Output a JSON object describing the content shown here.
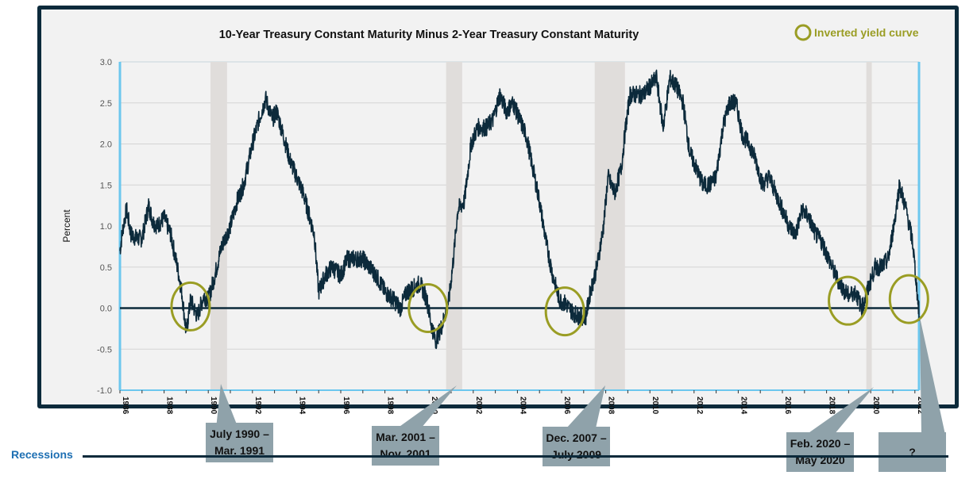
{
  "chart_data": {
    "type": "line",
    "title": "10-Year Treasury Constant Maturity Minus 2-Year Treasury Constant Maturity",
    "xlabel": "",
    "ylabel": "Percent",
    "xlim": [
      1986,
      2022.2
    ],
    "ylim": [
      -1.0,
      3.0
    ],
    "yticks": [
      "3.0",
      "2.5",
      "2.0",
      "1.5",
      "1.0",
      "0.5",
      "0.0",
      "-0.5",
      "-1.0"
    ],
    "ytick_values": [
      3.0,
      2.5,
      2.0,
      1.5,
      1.0,
      0.5,
      0.0,
      -0.5,
      -1.0
    ],
    "xticks": [
      "1986",
      "1988",
      "1990",
      "1992",
      "1994",
      "1996",
      "1998",
      "2000",
      "2002",
      "2004",
      "2006",
      "2008",
      "2010",
      "2012",
      "2014",
      "2016",
      "2018",
      "2020",
      "2022"
    ],
    "grid": true,
    "series": [
      {
        "name": "10Y-2Y spread",
        "color": "#0c2a3b",
        "x": [
          1986.0,
          1986.15,
          1986.3,
          1986.5,
          1986.75,
          1987.0,
          1987.3,
          1987.5,
          1987.7,
          1988.0,
          1988.3,
          1988.6,
          1988.8,
          1989.0,
          1989.2,
          1989.5,
          1989.8,
          1990.0,
          1990.3,
          1990.6,
          1991.0,
          1991.3,
          1991.6,
          1992.0,
          1992.3,
          1992.6,
          1992.9,
          1993.1,
          1993.4,
          1993.7,
          1994.0,
          1994.3,
          1994.6,
          1994.8,
          1995.0,
          1995.3,
          1995.6,
          1996.0,
          1996.3,
          1996.7,
          1997.0,
          1997.3,
          1997.6,
          1998.0,
          1998.4,
          1998.7,
          1999.0,
          1999.3,
          1999.6,
          1999.9,
          2000.1,
          2000.3,
          2000.6,
          2000.9,
          2001.1,
          2001.3,
          2001.6,
          2001.9,
          2002.2,
          2002.6,
          2002.9,
          2003.2,
          2003.5,
          2003.8,
          2004.1,
          2004.4,
          2004.7,
          2005.0,
          2005.3,
          2005.6,
          2005.9,
          2006.2,
          2006.5,
          2006.8,
          2007.1,
          2007.3,
          2007.6,
          2007.9,
          2008.1,
          2008.4,
          2008.7,
          2008.9,
          2009.1,
          2009.4,
          2009.7,
          2010.0,
          2010.3,
          2010.6,
          2010.9,
          2011.2,
          2011.5,
          2011.8,
          2012.1,
          2012.4,
          2012.7,
          2013.0,
          2013.3,
          2013.6,
          2013.9,
          2014.2,
          2014.5,
          2014.8,
          2015.1,
          2015.4,
          2015.7,
          2016.0,
          2016.3,
          2016.6,
          2016.9,
          2017.2,
          2017.5,
          2017.8,
          2018.1,
          2018.4,
          2018.7,
          2019.0,
          2019.3,
          2019.6,
          2019.9,
          2020.2,
          2020.5,
          2020.8,
          2021.1,
          2021.3,
          2021.6,
          2021.9,
          2022.0,
          2022.1,
          2022.2
        ],
        "y": [
          0.7,
          1.0,
          1.2,
          0.9,
          0.85,
          0.85,
          1.25,
          1.05,
          1.0,
          1.1,
          0.9,
          0.5,
          0.2,
          -0.3,
          0.1,
          -0.1,
          0.15,
          0.1,
          0.4,
          0.75,
          1.0,
          1.3,
          1.5,
          2.0,
          2.3,
          2.55,
          2.3,
          2.4,
          2.1,
          1.8,
          1.6,
          1.4,
          1.1,
          0.9,
          0.2,
          0.4,
          0.5,
          0.4,
          0.6,
          0.6,
          0.6,
          0.5,
          0.4,
          0.2,
          0.1,
          0.0,
          0.2,
          0.25,
          0.3,
          0.1,
          -0.2,
          -0.4,
          -0.2,
          0.1,
          0.6,
          1.2,
          1.3,
          2.0,
          2.2,
          2.2,
          2.3,
          2.6,
          2.4,
          2.5,
          2.3,
          2.1,
          1.7,
          1.3,
          0.8,
          0.4,
          0.1,
          0.05,
          -0.05,
          -0.1,
          -0.1,
          0.2,
          0.5,
          1.0,
          1.6,
          1.4,
          1.7,
          2.2,
          2.6,
          2.6,
          2.6,
          2.7,
          2.8,
          2.2,
          2.8,
          2.7,
          2.5,
          1.9,
          1.7,
          1.5,
          1.5,
          1.6,
          2.2,
          2.5,
          2.5,
          2.1,
          2.0,
          1.8,
          1.5,
          1.6,
          1.4,
          1.2,
          1.0,
          0.9,
          1.2,
          1.1,
          0.9,
          0.8,
          0.6,
          0.4,
          0.25,
          0.15,
          0.2,
          0.0,
          0.25,
          0.5,
          0.5,
          0.6,
          1.1,
          1.5,
          1.2,
          0.8,
          0.5,
          0.2,
          -0.1
        ]
      }
    ],
    "recession_bands": [
      [
        1990.1,
        1990.85
      ],
      [
        2000.77,
        2001.5
      ],
      [
        2007.5,
        2008.87
      ],
      [
        2019.8,
        2020.05
      ]
    ],
    "inverted_markers": [
      [
        1989.2,
        0.02
      ],
      [
        1999.95,
        0.0
      ],
      [
        2006.15,
        -0.04
      ],
      [
        2018.97,
        0.09
      ],
      [
        2021.73,
        0.11
      ]
    ],
    "legend": {
      "label": "Inverted yield curve",
      "color": "#9a9d24",
      "placement": "top-right"
    },
    "recessions_label": "Recessions",
    "recession_callouts": [
      {
        "line1": "July 1990 –",
        "line2": "Mar. 1991"
      },
      {
        "line1": "Mar. 2001 –",
        "line2": "Nov. 2001"
      },
      {
        "line1": "Dec. 2007 –",
        "line2": "July 2009"
      },
      {
        "line1": "Feb. 2020 –",
        "line2": "May 2020"
      },
      {
        "line1": "?",
        "line2": ""
      }
    ]
  }
}
